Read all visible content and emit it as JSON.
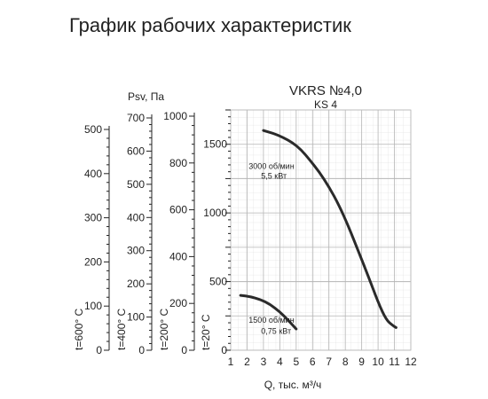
{
  "title": "График рабочих характеристик",
  "chart_data": {
    "type": "line",
    "model": "VKRS №4,0",
    "model_sub": "KS 4",
    "xlabel": "Q, тыс. м³/ч",
    "x_ticks": [
      1,
      2,
      3,
      4,
      5,
      6,
      7,
      8,
      9,
      10,
      11,
      12
    ],
    "xlim": [
      1,
      12
    ],
    "ylim": [
      0,
      1750
    ],
    "y_ticks": [
      0,
      500,
      1000,
      1500
    ],
    "pressure_label": "Psv, Па",
    "temp_axes": [
      {
        "label": "t=600° C",
        "ticks": [
          0,
          100,
          200,
          300,
          400,
          500
        ]
      },
      {
        "label": "t=400° C",
        "ticks": [
          0,
          100,
          200,
          300,
          400,
          500,
          600,
          700
        ]
      },
      {
        "label": "t=200° C",
        "ticks": [
          0,
          200,
          400,
          600,
          800,
          1000
        ]
      },
      {
        "label": "t=20° C",
        "ticks": [
          0,
          500,
          1000,
          1500
        ]
      }
    ],
    "series": [
      {
        "name": "3000 об/мин 5,5 кВт",
        "label_line1": "3000 об/мин",
        "label_line2": "5,5 кВт",
        "x": [
          3.0,
          3.6,
          4.2,
          4.8,
          5.3,
          5.8,
          6.4,
          7.0,
          7.6,
          8.2,
          8.8,
          9.4,
          10.0,
          10.5,
          10.9,
          11.1
        ],
        "y": [
          1600,
          1580,
          1550,
          1510,
          1460,
          1390,
          1300,
          1190,
          1060,
          900,
          720,
          540,
          350,
          220,
          180,
          165
        ]
      },
      {
        "name": "1500 об/мин 0,75 кВт",
        "label_line1": "1500 об/мин",
        "label_line2": "0,75 кВт",
        "x": [
          1.6,
          2.2,
          2.8,
          3.4,
          4.0,
          4.5,
          5.0
        ],
        "y": [
          400,
          390,
          370,
          335,
          280,
          220,
          155
        ]
      }
    ]
  }
}
